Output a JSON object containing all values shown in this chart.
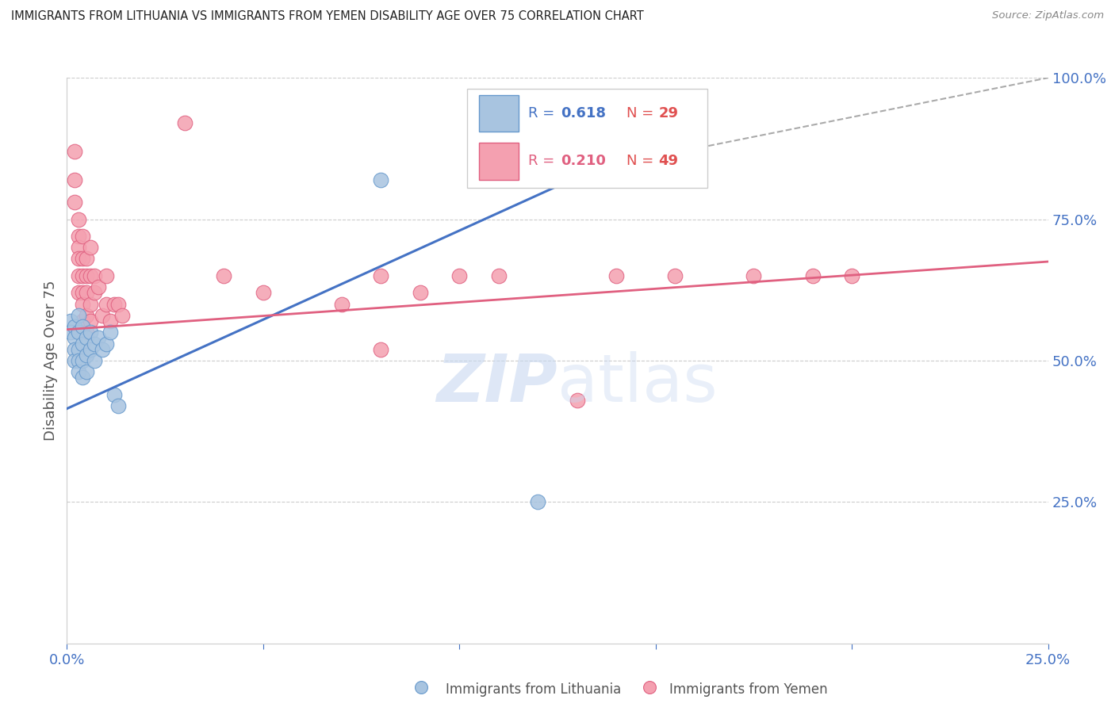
{
  "title": "IMMIGRANTS FROM LITHUANIA VS IMMIGRANTS FROM YEMEN DISABILITY AGE OVER 75 CORRELATION CHART",
  "source": "Source: ZipAtlas.com",
  "ylabel": "Disability Age Over 75",
  "xlim": [
    0,
    0.25
  ],
  "ylim": [
    0,
    1.0
  ],
  "x_tick_positions": [
    0.0,
    0.05,
    0.1,
    0.15,
    0.2,
    0.25
  ],
  "x_tick_labels": [
    "0.0%",
    "",
    "",
    "",
    "",
    "25.0%"
  ],
  "y_tick_positions": [
    0.0,
    0.25,
    0.5,
    0.75,
    1.0
  ],
  "y_tick_labels_right": [
    "",
    "25.0%",
    "50.0%",
    "75.0%",
    "100.0%"
  ],
  "lithuania_scatter": [
    [
      0.001,
      0.57
    ],
    [
      0.001,
      0.55
    ],
    [
      0.002,
      0.56
    ],
    [
      0.002,
      0.54
    ],
    [
      0.002,
      0.52
    ],
    [
      0.002,
      0.5
    ],
    [
      0.003,
      0.58
    ],
    [
      0.003,
      0.55
    ],
    [
      0.003,
      0.52
    ],
    [
      0.003,
      0.5
    ],
    [
      0.003,
      0.48
    ],
    [
      0.004,
      0.56
    ],
    [
      0.004,
      0.53
    ],
    [
      0.004,
      0.5
    ],
    [
      0.004,
      0.47
    ],
    [
      0.005,
      0.54
    ],
    [
      0.005,
      0.51
    ],
    [
      0.005,
      0.48
    ],
    [
      0.006,
      0.55
    ],
    [
      0.006,
      0.52
    ],
    [
      0.007,
      0.53
    ],
    [
      0.007,
      0.5
    ],
    [
      0.008,
      0.54
    ],
    [
      0.009,
      0.52
    ],
    [
      0.01,
      0.53
    ],
    [
      0.011,
      0.55
    ],
    [
      0.012,
      0.44
    ],
    [
      0.013,
      0.42
    ],
    [
      0.08,
      0.82
    ],
    [
      0.12,
      0.25
    ]
  ],
  "yemen_scatter": [
    [
      0.002,
      0.87
    ],
    [
      0.002,
      0.82
    ],
    [
      0.002,
      0.78
    ],
    [
      0.003,
      0.75
    ],
    [
      0.003,
      0.72
    ],
    [
      0.003,
      0.7
    ],
    [
      0.003,
      0.68
    ],
    [
      0.003,
      0.65
    ],
    [
      0.003,
      0.62
    ],
    [
      0.004,
      0.72
    ],
    [
      0.004,
      0.68
    ],
    [
      0.004,
      0.65
    ],
    [
      0.004,
      0.62
    ],
    [
      0.004,
      0.6
    ],
    [
      0.004,
      0.57
    ],
    [
      0.005,
      0.68
    ],
    [
      0.005,
      0.65
    ],
    [
      0.005,
      0.62
    ],
    [
      0.005,
      0.58
    ],
    [
      0.005,
      0.55
    ],
    [
      0.006,
      0.7
    ],
    [
      0.006,
      0.65
    ],
    [
      0.006,
      0.6
    ],
    [
      0.006,
      0.57
    ],
    [
      0.007,
      0.65
    ],
    [
      0.007,
      0.62
    ],
    [
      0.008,
      0.63
    ],
    [
      0.009,
      0.58
    ],
    [
      0.01,
      0.65
    ],
    [
      0.01,
      0.6
    ],
    [
      0.011,
      0.57
    ],
    [
      0.012,
      0.6
    ],
    [
      0.013,
      0.6
    ],
    [
      0.014,
      0.58
    ],
    [
      0.03,
      0.92
    ],
    [
      0.04,
      0.65
    ],
    [
      0.05,
      0.62
    ],
    [
      0.07,
      0.6
    ],
    [
      0.08,
      0.65
    ],
    [
      0.08,
      0.52
    ],
    [
      0.09,
      0.62
    ],
    [
      0.1,
      0.65
    ],
    [
      0.11,
      0.65
    ],
    [
      0.13,
      0.43
    ],
    [
      0.14,
      0.65
    ],
    [
      0.155,
      0.65
    ],
    [
      0.175,
      0.65
    ],
    [
      0.19,
      0.65
    ],
    [
      0.2,
      0.65
    ]
  ],
  "blue_line": [
    [
      0.0,
      0.415
    ],
    [
      0.135,
      0.84
    ]
  ],
  "pink_line": [
    [
      0.0,
      0.555
    ],
    [
      0.25,
      0.675
    ]
  ],
  "gray_dashed_line": [
    [
      0.135,
      0.84
    ],
    [
      0.25,
      1.0
    ]
  ],
  "scatter_blue_face": "#a8c4e0",
  "scatter_blue_edge": "#6699cc",
  "scatter_pink_face": "#f4a0b0",
  "scatter_pink_edge": "#e06080",
  "line_blue_color": "#4472c4",
  "line_pink_color": "#e06080",
  "line_gray_color": "#aaaaaa",
  "grid_color": "#cccccc",
  "right_tick_color": "#4472c4",
  "watermark_color": "#c8d8f0",
  "background_color": "#ffffff",
  "title_color": "#222222",
  "source_color": "#888888",
  "ylabel_color": "#555555",
  "legend_blue_face": "#a8c4e0",
  "legend_blue_edge": "#6699cc",
  "legend_pink_face": "#f4a0b0",
  "legend_pink_edge": "#e06080",
  "legend_R_blue_color": "#4472c4",
  "legend_N_blue_color": "#e05050",
  "legend_R_pink_color": "#e06080",
  "legend_N_pink_color": "#e05050",
  "bottom_label_lith": "Immigrants from Lithuania",
  "bottom_label_yem": "Immigrants from Yemen"
}
